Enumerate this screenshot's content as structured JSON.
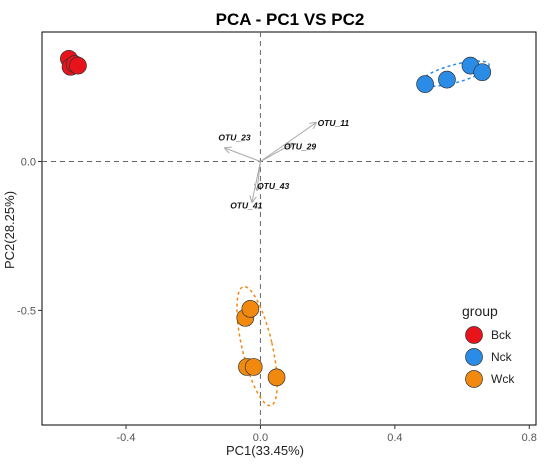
{
  "chart_data": {
    "type": "scatter",
    "title": "PCA - PC1 VS PC2",
    "xlabel": "PC1(33.45%)",
    "ylabel": "PC2(28.25%)",
    "xlim": [
      -0.65,
      0.82
    ],
    "ylim": [
      -0.885,
      0.435
    ],
    "xticks": [
      -0.4,
      0.0,
      0.4,
      0.8
    ],
    "yticks": [
      0.0,
      -0.5
    ],
    "x_tick_labels": [
      "-0.4",
      "0.0",
      "0.4",
      "0.8"
    ],
    "y_tick_labels": [
      "0.0",
      "-0.5"
    ],
    "reference_lines": {
      "x": 0,
      "y": 0,
      "style": "dashed"
    },
    "legend": {
      "title": "group",
      "placement": "right"
    },
    "series": [
      {
        "name": "Bck",
        "color": "#e8141c",
        "points": [
          [
            -0.57,
            0.345
          ],
          [
            -0.565,
            0.318
          ],
          [
            -0.553,
            0.327
          ],
          [
            -0.543,
            0.322
          ]
        ]
      },
      {
        "name": "Nck",
        "color": "#2b8ce8",
        "points": [
          [
            0.49,
            0.26
          ],
          [
            0.555,
            0.275
          ],
          [
            0.625,
            0.322
          ],
          [
            0.66,
            0.3
          ]
        ]
      },
      {
        "name": "Wck",
        "color": "#f2890f",
        "points": [
          [
            -0.045,
            -0.525
          ],
          [
            -0.03,
            -0.495
          ],
          [
            -0.04,
            -0.69
          ],
          [
            -0.02,
            -0.69
          ],
          [
            0.048,
            -0.725
          ]
        ]
      }
    ],
    "ellipses": [
      {
        "group": "Nck",
        "center": [
          0.579,
          0.295
        ],
        "semi_axes": [
          0.105,
          0.03
        ],
        "angle_deg": 15
      },
      {
        "group": "Wck",
        "center": [
          -0.01,
          -0.62
        ],
        "semi_axes": [
          0.045,
          0.205
        ],
        "angle_deg": 13
      }
    ],
    "loadings": [
      {
        "label": "OTU_11",
        "end": [
          0.165,
          0.13
        ],
        "label_pos": [
          0.17,
          0.12
        ]
      },
      {
        "label": "OTU_23",
        "end": [
          -0.105,
          0.045
        ],
        "label_pos": [
          -0.125,
          0.07
        ]
      },
      {
        "label": "OTU_29",
        "end": [
          0.095,
          0.06
        ],
        "label_pos": [
          0.07,
          0.04
        ]
      },
      {
        "label": "OTU_43",
        "end": [
          -0.01,
          -0.095
        ],
        "label_pos": [
          -0.01,
          -0.093
        ]
      },
      {
        "label": "OTU_41",
        "end": [
          -0.025,
          -0.135
        ],
        "label_pos": [
          -0.09,
          -0.157
        ]
      }
    ]
  }
}
